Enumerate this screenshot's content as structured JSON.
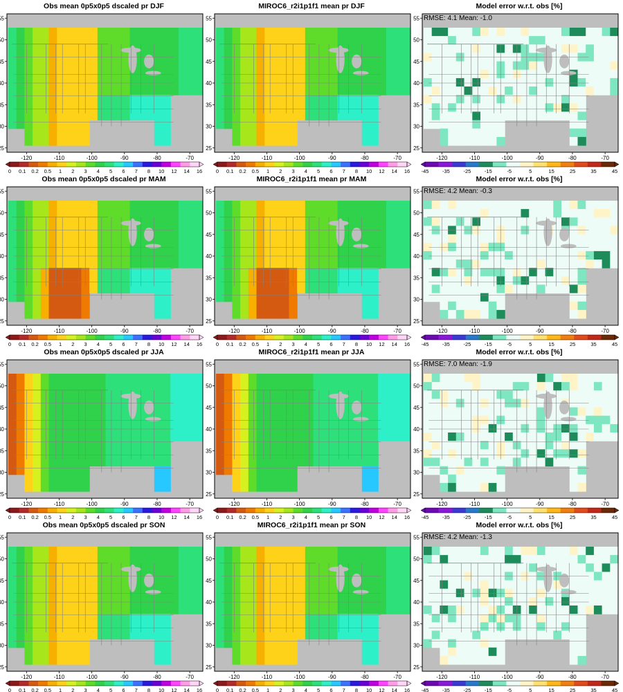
{
  "figure": {
    "row_seasons": [
      "DJF",
      "MAM",
      "JJA",
      "SON"
    ],
    "panels": [
      {
        "title": "Obs mean 0p5x0p5 dscaled pr DJF",
        "kind": "mean",
        "season": "DJF",
        "annotation": ""
      },
      {
        "title": "MIROC6_r2i1p1f1 mean pr DJF",
        "kind": "mean",
        "season": "DJF",
        "annotation": ""
      },
      {
        "title": "Model error w.r.t. obs [%]",
        "kind": "error",
        "season": "DJF",
        "annotation": "RMSE: 4.1   Mean: -1.0"
      },
      {
        "title": "Obs mean 0p5x0p5 dscaled pr MAM",
        "kind": "mean",
        "season": "MAM",
        "annotation": ""
      },
      {
        "title": "MIROC6_r2i1p1f1 mean pr MAM",
        "kind": "mean",
        "season": "MAM",
        "annotation": ""
      },
      {
        "title": "Model error w.r.t. obs [%]",
        "kind": "error",
        "season": "MAM",
        "annotation": "RMSE: 4.2   Mean: -0.3"
      },
      {
        "title": "Obs mean 0p5x0p5 dscaled pr JJA",
        "kind": "mean",
        "season": "JJA",
        "annotation": ""
      },
      {
        "title": "MIROC6_r2i1p1f1 mean pr JJA",
        "kind": "mean",
        "season": "JJA",
        "annotation": ""
      },
      {
        "title": "Model error w.r.t. obs [%]",
        "kind": "error",
        "season": "JJA",
        "annotation": "RMSE: 7.0   Mean: -1.9"
      },
      {
        "title": "Obs mean 0p5x0p5 dscaled pr SON",
        "kind": "mean",
        "season": "SON",
        "annotation": ""
      },
      {
        "title": "MIROC6_r2i1p1f1 mean pr SON",
        "kind": "mean",
        "season": "SON",
        "annotation": ""
      },
      {
        "title": "Model error w.r.t. obs [%]",
        "kind": "error",
        "season": "SON",
        "annotation": "RMSE: 4.2   Mean: -1.3"
      }
    ],
    "map_axes": {
      "x_ticks": [
        "-120",
        "-110",
        "-100",
        "-90",
        "-80",
        "-70"
      ],
      "y_ticks": [
        "25",
        "30",
        "35",
        "40",
        "45",
        "50",
        "55"
      ],
      "xlim": [
        -126,
        -66
      ],
      "ylim": [
        24,
        56
      ]
    },
    "mean_colorbar": {
      "labels": [
        "0",
        "0.1",
        "0.2",
        "0.5",
        "1",
        "2",
        "3",
        "4",
        "5",
        "6",
        "7",
        "8",
        "10",
        "12",
        "14",
        "16"
      ],
      "colors": [
        "#8c1a1a",
        "#b32a2a",
        "#d35a10",
        "#f07a00",
        "#f7b000",
        "#ffd21a",
        "#d6f020",
        "#a6e61a",
        "#5fdc2a",
        "#2fd24a",
        "#2ee07a",
        "#2ef0c8",
        "#27c8ff",
        "#3a72ff",
        "#2a1ae0",
        "#6a00d6",
        "#c000e0",
        "#ff44ff",
        "#ff9ce6",
        "#ffd6f5"
      ]
    },
    "error_colorbar": {
      "labels": [
        "-45",
        "-35",
        "-25",
        "-15",
        "-5",
        "5",
        "15",
        "25",
        "35",
        "45"
      ],
      "colors": [
        "#6a0ab0",
        "#8a18d8",
        "#3a3ad2",
        "#2a78c8",
        "#1e8c5a",
        "#7ee6c0",
        "#eefcf8",
        "#fff4c8",
        "#ffe070",
        "#ffb818",
        "#f07f12",
        "#e04a1c",
        "#c0281a",
        "#6a2a08"
      ]
    },
    "map_colors": {
      "missing": "#bebebe",
      "border": "#808080"
    }
  },
  "chart_data": [
    {
      "type": "heatmap",
      "title": "Obs mean 0p5x0p5 dscaled pr DJF",
      "season": "DJF",
      "xlim": [
        -126,
        -66
      ],
      "ylim": [
        24,
        56
      ],
      "x_ticks": [
        -120,
        -110,
        -100,
        -90,
        -80,
        -70
      ],
      "y_ticks": [
        25,
        30,
        35,
        40,
        45,
        50,
        55
      ],
      "colorbar_levels": [
        0,
        0.1,
        0.2,
        0.5,
        1,
        2,
        3,
        4,
        5,
        6,
        7,
        8,
        10,
        12,
        14,
        16
      ]
    },
    {
      "type": "heatmap",
      "title": "MIROC6_r2i1p1f1 mean pr DJF",
      "season": "DJF",
      "xlim": [
        -126,
        -66
      ],
      "ylim": [
        24,
        56
      ],
      "x_ticks": [
        -120,
        -110,
        -100,
        -90,
        -80,
        -70
      ],
      "y_ticks": [
        25,
        30,
        35,
        40,
        45,
        50,
        55
      ],
      "colorbar_levels": [
        0,
        0.1,
        0.2,
        0.5,
        1,
        2,
        3,
        4,
        5,
        6,
        7,
        8,
        10,
        12,
        14,
        16
      ]
    },
    {
      "type": "heatmap",
      "title": "Model error w.r.t. obs [%]",
      "season": "DJF",
      "annotation": "RMSE: 4.1   Mean: -1.0",
      "rmse": 4.1,
      "mean": -1.0,
      "xlim": [
        -126,
        -66
      ],
      "ylim": [
        24,
        56
      ],
      "colorbar_levels": [
        -45,
        -35,
        -25,
        -15,
        -5,
        5,
        15,
        25,
        35,
        45
      ]
    },
    {
      "type": "heatmap",
      "title": "Obs mean 0p5x0p5 dscaled pr MAM",
      "season": "MAM",
      "xlim": [
        -126,
        -66
      ],
      "ylim": [
        24,
        56
      ],
      "colorbar_levels": [
        0,
        0.1,
        0.2,
        0.5,
        1,
        2,
        3,
        4,
        5,
        6,
        7,
        8,
        10,
        12,
        14,
        16
      ]
    },
    {
      "type": "heatmap",
      "title": "MIROC6_r2i1p1f1 mean pr MAM",
      "season": "MAM",
      "xlim": [
        -126,
        -66
      ],
      "ylim": [
        24,
        56
      ],
      "colorbar_levels": [
        0,
        0.1,
        0.2,
        0.5,
        1,
        2,
        3,
        4,
        5,
        6,
        7,
        8,
        10,
        12,
        14,
        16
      ]
    },
    {
      "type": "heatmap",
      "title": "Model error w.r.t. obs [%]",
      "season": "MAM",
      "annotation": "RMSE: 4.2   Mean: -0.3",
      "rmse": 4.2,
      "mean": -0.3,
      "xlim": [
        -126,
        -66
      ],
      "ylim": [
        24,
        56
      ],
      "colorbar_levels": [
        -45,
        -35,
        -25,
        -15,
        -5,
        5,
        15,
        25,
        35,
        45
      ]
    },
    {
      "type": "heatmap",
      "title": "Obs mean 0p5x0p5 dscaled pr JJA",
      "season": "JJA",
      "xlim": [
        -126,
        -66
      ],
      "ylim": [
        24,
        56
      ],
      "colorbar_levels": [
        0,
        0.1,
        0.2,
        0.5,
        1,
        2,
        3,
        4,
        5,
        6,
        7,
        8,
        10,
        12,
        14,
        16
      ]
    },
    {
      "type": "heatmap",
      "title": "MIROC6_r2i1p1f1 mean pr JJA",
      "season": "JJA",
      "xlim": [
        -126,
        -66
      ],
      "ylim": [
        24,
        56
      ],
      "colorbar_levels": [
        0,
        0.1,
        0.2,
        0.5,
        1,
        2,
        3,
        4,
        5,
        6,
        7,
        8,
        10,
        12,
        14,
        16
      ]
    },
    {
      "type": "heatmap",
      "title": "Model error w.r.t. obs [%]",
      "season": "JJA",
      "annotation": "RMSE: 7.0   Mean: -1.9",
      "rmse": 7.0,
      "mean": -1.9,
      "xlim": [
        -126,
        -66
      ],
      "ylim": [
        24,
        56
      ],
      "colorbar_levels": [
        -45,
        -35,
        -25,
        -15,
        -5,
        5,
        15,
        25,
        35,
        45
      ]
    },
    {
      "type": "heatmap",
      "title": "Obs mean 0p5x0p5 dscaled pr SON",
      "season": "SON",
      "xlim": [
        -126,
        -66
      ],
      "ylim": [
        24,
        56
      ],
      "colorbar_levels": [
        0,
        0.1,
        0.2,
        0.5,
        1,
        2,
        3,
        4,
        5,
        6,
        7,
        8,
        10,
        12,
        14,
        16
      ]
    },
    {
      "type": "heatmap",
      "title": "MIROC6_r2i1p1f1 mean pr SON",
      "season": "SON",
      "xlim": [
        -126,
        -66
      ],
      "ylim": [
        24,
        56
      ],
      "colorbar_levels": [
        0,
        0.1,
        0.2,
        0.5,
        1,
        2,
        3,
        4,
        5,
        6,
        7,
        8,
        10,
        12,
        14,
        16
      ]
    },
    {
      "type": "heatmap",
      "title": "Model error w.r.t. obs [%]",
      "season": "SON",
      "annotation": "RMSE: 4.2   Mean: -1.3",
      "rmse": 4.2,
      "mean": -1.3,
      "xlim": [
        -126,
        -66
      ],
      "ylim": [
        24,
        56
      ],
      "colorbar_levels": [
        -45,
        -35,
        -25,
        -15,
        -5,
        5,
        15,
        25,
        35,
        45
      ]
    }
  ]
}
